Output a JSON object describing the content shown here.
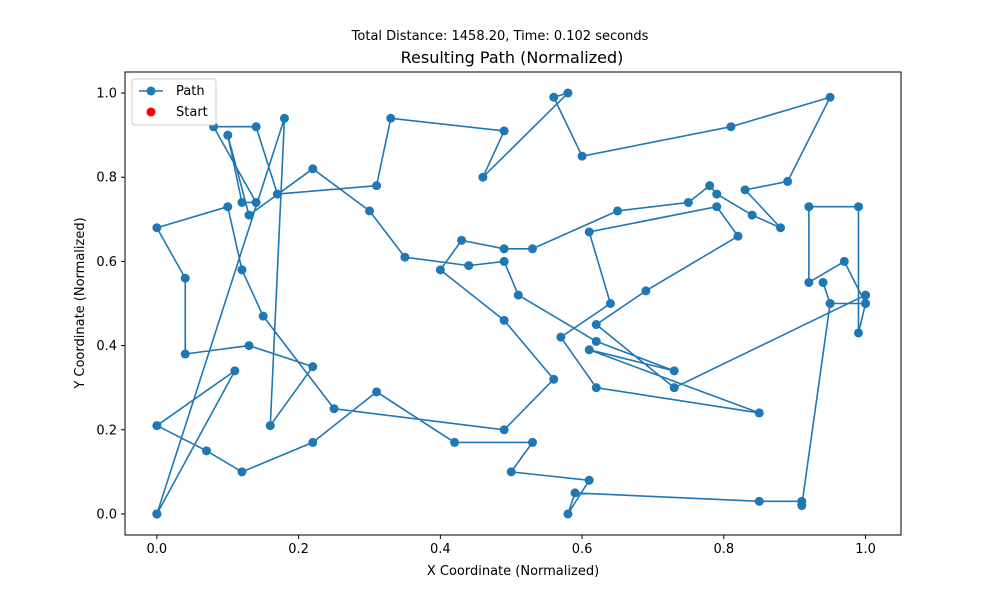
{
  "chart_data": {
    "type": "line",
    "suptitle": "Total Distance: 1458.20, Time: 0.102 seconds",
    "title": "Resulting Path (Normalized)",
    "xlabel": "X Coordinate (Normalized)",
    "ylabel": "Y Coordinate (Normalized)",
    "xlim": [
      -0.045,
      1.05
    ],
    "ylim": [
      -0.05,
      1.05
    ],
    "xticks": [
      0.0,
      0.2,
      0.4,
      0.6,
      0.8,
      1.0
    ],
    "yticks": [
      0.0,
      0.2,
      0.4,
      0.6,
      0.8,
      1.0
    ],
    "xtick_labels": [
      "0.0",
      "0.2",
      "0.4",
      "0.6",
      "0.8",
      "1.0"
    ],
    "ytick_labels": [
      "0.0",
      "0.2",
      "0.4",
      "0.6",
      "0.8",
      "1.0"
    ],
    "grid": false,
    "legend": {
      "position": "upper-left",
      "entries": [
        "Path",
        "Start"
      ]
    },
    "colors": {
      "path": "#1f77b4",
      "start": "#ff0000"
    },
    "series": [
      {
        "name": "Path",
        "points": [
          [
            0.0,
            0.0
          ],
          [
            0.18,
            0.94
          ],
          [
            0.16,
            0.21
          ],
          [
            0.22,
            0.35
          ],
          [
            0.13,
            0.4
          ],
          [
            0.04,
            0.38
          ],
          [
            0.04,
            0.56
          ],
          [
            0.0,
            0.68
          ],
          [
            0.1,
            0.73
          ],
          [
            0.12,
            0.58
          ],
          [
            0.15,
            0.47
          ],
          [
            0.25,
            0.25
          ],
          [
            0.49,
            0.2
          ],
          [
            0.56,
            0.32
          ],
          [
            0.49,
            0.46
          ],
          [
            0.4,
            0.58
          ],
          [
            0.43,
            0.65
          ],
          [
            0.49,
            0.63
          ],
          [
            0.53,
            0.63
          ],
          [
            0.65,
            0.72
          ],
          [
            0.75,
            0.74
          ],
          [
            0.78,
            0.78
          ],
          [
            0.79,
            0.76
          ],
          [
            0.84,
            0.71
          ],
          [
            0.88,
            0.68
          ],
          [
            0.83,
            0.77
          ],
          [
            0.89,
            0.79
          ],
          [
            0.95,
            0.99
          ],
          [
            0.81,
            0.92
          ],
          [
            0.6,
            0.85
          ],
          [
            0.56,
            0.99
          ],
          [
            0.58,
            1.0
          ],
          [
            0.46,
            0.8
          ],
          [
            0.49,
            0.91
          ],
          [
            0.33,
            0.94
          ],
          [
            0.31,
            0.78
          ],
          [
            0.17,
            0.76
          ],
          [
            0.14,
            0.92
          ],
          [
            0.08,
            0.92
          ],
          [
            0.14,
            0.74
          ],
          [
            0.12,
            0.74
          ],
          [
            0.1,
            0.9
          ],
          [
            0.13,
            0.71
          ],
          [
            0.22,
            0.82
          ],
          [
            0.3,
            0.72
          ],
          [
            0.35,
            0.61
          ],
          [
            0.44,
            0.59
          ],
          [
            0.49,
            0.6
          ],
          [
            0.51,
            0.52
          ],
          [
            0.62,
            0.41
          ],
          [
            0.73,
            0.34
          ],
          [
            0.61,
            0.39
          ],
          [
            0.85,
            0.24
          ],
          [
            0.62,
            0.3
          ],
          [
            0.57,
            0.42
          ],
          [
            0.64,
            0.5
          ],
          [
            0.61,
            0.67
          ],
          [
            0.79,
            0.73
          ],
          [
            0.82,
            0.66
          ],
          [
            0.69,
            0.53
          ],
          [
            0.62,
            0.45
          ],
          [
            0.73,
            0.3
          ],
          [
            1.0,
            0.52
          ],
          [
            1.0,
            0.5
          ],
          [
            0.99,
            0.43
          ],
          [
            0.99,
            0.73
          ],
          [
            0.92,
            0.73
          ],
          [
            0.92,
            0.55
          ],
          [
            0.97,
            0.6
          ],
          [
            1.0,
            0.5
          ],
          [
            0.95,
            0.5
          ],
          [
            0.94,
            0.55
          ],
          [
            0.95,
            0.5
          ],
          [
            0.91,
            0.02
          ],
          [
            0.91,
            0.03
          ],
          [
            0.85,
            0.03
          ],
          [
            0.59,
            0.05
          ],
          [
            0.58,
            0.0
          ],
          [
            0.61,
            0.08
          ],
          [
            0.5,
            0.1
          ],
          [
            0.53,
            0.17
          ],
          [
            0.42,
            0.17
          ],
          [
            0.31,
            0.29
          ],
          [
            0.22,
            0.17
          ],
          [
            0.12,
            0.1
          ],
          [
            0.07,
            0.15
          ],
          [
            0.0,
            0.21
          ],
          [
            0.11,
            0.34
          ],
          [
            0.0,
            0.0
          ]
        ]
      },
      {
        "name": "Start",
        "points": [
          [
            0.0,
            0.0
          ]
        ]
      }
    ]
  }
}
